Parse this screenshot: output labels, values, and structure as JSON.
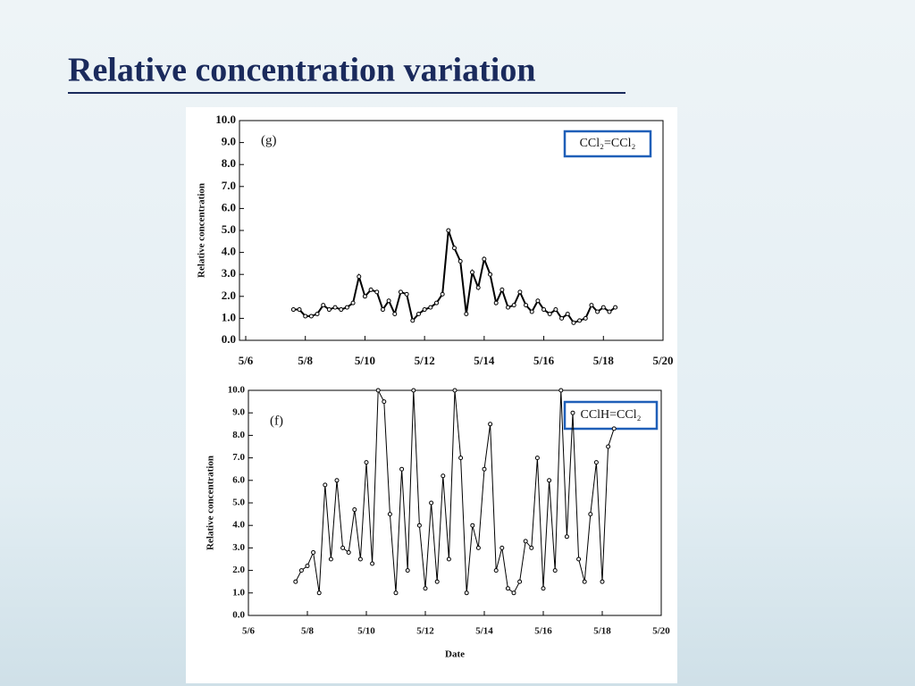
{
  "title": "Relative concentration variation",
  "chart_data": [
    {
      "type": "line",
      "label": "(g)",
      "ylabel": "Relative concentration",
      "xlim": [
        6,
        20
      ],
      "ylim": [
        0,
        10
      ],
      "xticks": [
        {
          "value": 6,
          "label": "5/6"
        },
        {
          "value": 8,
          "label": "5/8"
        },
        {
          "value": 10,
          "label": "5/10"
        },
        {
          "value": 12,
          "label": "5/12"
        },
        {
          "value": 14,
          "label": "5/14"
        },
        {
          "value": 16,
          "label": "5/16"
        },
        {
          "value": 18,
          "label": "5/18"
        },
        {
          "value": 20,
          "label": "5/20"
        }
      ],
      "yticks": [
        {
          "value": 0,
          "label": "0.0"
        },
        {
          "value": 1,
          "label": "1.0"
        },
        {
          "value": 2,
          "label": "2.0"
        },
        {
          "value": 3,
          "label": "3.0"
        },
        {
          "value": 4,
          "label": "4.0"
        },
        {
          "value": 5,
          "label": "5.0"
        },
        {
          "value": 6,
          "label": "6.0"
        },
        {
          "value": 7,
          "label": "7.0"
        },
        {
          "value": 8,
          "label": "8.0"
        },
        {
          "value": 9,
          "label": "9.0"
        },
        {
          "value": 10,
          "label": "10.0"
        }
      ],
      "x": [
        7.6,
        7.8,
        8.0,
        8.2,
        8.4,
        8.6,
        8.8,
        9.0,
        9.2,
        9.4,
        9.6,
        9.8,
        10.0,
        10.2,
        10.4,
        10.6,
        10.8,
        11.0,
        11.2,
        11.4,
        11.6,
        11.8,
        12.0,
        12.2,
        12.4,
        12.6,
        12.8,
        13.0,
        13.2,
        13.4,
        13.6,
        13.8,
        14.0,
        14.2,
        14.4,
        14.6,
        14.8,
        15.0,
        15.2,
        15.4,
        15.6,
        15.8,
        16.0,
        16.2,
        16.4,
        16.6,
        16.8,
        17.0,
        17.2,
        17.4,
        17.6,
        17.8,
        18.0,
        18.2,
        18.4
      ],
      "series": [
        {
          "name": "CCl₂=CCl₂",
          "color": "#000000",
          "values": [
            1.4,
            1.4,
            1.1,
            1.1,
            1.2,
            1.6,
            1.4,
            1.5,
            1.4,
            1.5,
            1.7,
            2.9,
            2.0,
            2.3,
            2.2,
            1.4,
            1.8,
            1.2,
            2.2,
            2.1,
            0.9,
            1.2,
            1.4,
            1.5,
            1.7,
            2.1,
            5.0,
            4.2,
            3.6,
            1.2,
            3.1,
            2.4,
            3.7,
            3.0,
            1.7,
            2.3,
            1.5,
            1.6,
            2.2,
            1.6,
            1.3,
            1.8,
            1.4,
            1.2,
            1.4,
            1.0,
            1.2,
            0.8,
            0.9,
            1.0,
            1.6,
            1.3,
            1.5,
            1.3,
            1.5
          ]
        }
      ]
    },
    {
      "type": "line",
      "label": "(f)",
      "ylabel": "Relative concentration",
      "xlabel": "Date",
      "xlim": [
        6,
        20
      ],
      "ylim": [
        0,
        10
      ],
      "xticks": [
        {
          "value": 6,
          "label": "5/6"
        },
        {
          "value": 8,
          "label": "5/8"
        },
        {
          "value": 10,
          "label": "5/10"
        },
        {
          "value": 12,
          "label": "5/12"
        },
        {
          "value": 14,
          "label": "5/14"
        },
        {
          "value": 16,
          "label": "5/16"
        },
        {
          "value": 18,
          "label": "5/18"
        },
        {
          "value": 20,
          "label": "5/20"
        }
      ],
      "yticks": [
        {
          "value": 0,
          "label": "0.0"
        },
        {
          "value": 1,
          "label": "1.0"
        },
        {
          "value": 2,
          "label": "2.0"
        },
        {
          "value": 3,
          "label": "3.0"
        },
        {
          "value": 4,
          "label": "4.0"
        },
        {
          "value": 5,
          "label": "5.0"
        },
        {
          "value": 6,
          "label": "6.0"
        },
        {
          "value": 7,
          "label": "7.0"
        },
        {
          "value": 8,
          "label": "8.0"
        },
        {
          "value": 9,
          "label": "9.0"
        },
        {
          "value": 10,
          "label": "10.0"
        }
      ],
      "x": [
        7.6,
        7.8,
        8.0,
        8.2,
        8.4,
        8.6,
        8.8,
        9.0,
        9.2,
        9.4,
        9.6,
        9.8,
        10.0,
        10.2,
        10.4,
        10.6,
        10.8,
        11.0,
        11.2,
        11.4,
        11.6,
        11.8,
        12.0,
        12.2,
        12.4,
        12.6,
        12.8,
        13.0,
        13.2,
        13.4,
        13.6,
        13.8,
        14.0,
        14.2,
        14.4,
        14.6,
        14.8,
        15.0,
        15.2,
        15.4,
        15.6,
        15.8,
        16.0,
        16.2,
        16.4,
        16.6,
        16.8,
        17.0,
        17.2,
        17.4,
        17.6,
        17.8,
        18.0,
        18.2,
        18.4
      ],
      "series": [
        {
          "name": "CClH=CCl₂",
          "color": "#000000",
          "values": [
            1.5,
            2.0,
            2.2,
            2.8,
            1.0,
            5.8,
            2.5,
            6.0,
            3.0,
            2.8,
            4.7,
            2.5,
            6.8,
            2.3,
            10,
            9.5,
            4.5,
            1.0,
            6.5,
            2.0,
            10,
            4.0,
            1.2,
            5.0,
            1.5,
            6.2,
            2.5,
            10,
            7.0,
            1.0,
            4.0,
            3.0,
            6.5,
            8.5,
            2.0,
            3.0,
            1.2,
            1.0,
            1.5,
            3.3,
            3.0,
            7.0,
            1.2,
            6.0,
            2.0,
            10,
            3.5,
            9.0,
            2.5,
            1.5,
            4.5,
            6.8,
            1.5,
            7.5,
            8.3
          ]
        }
      ]
    }
  ]
}
